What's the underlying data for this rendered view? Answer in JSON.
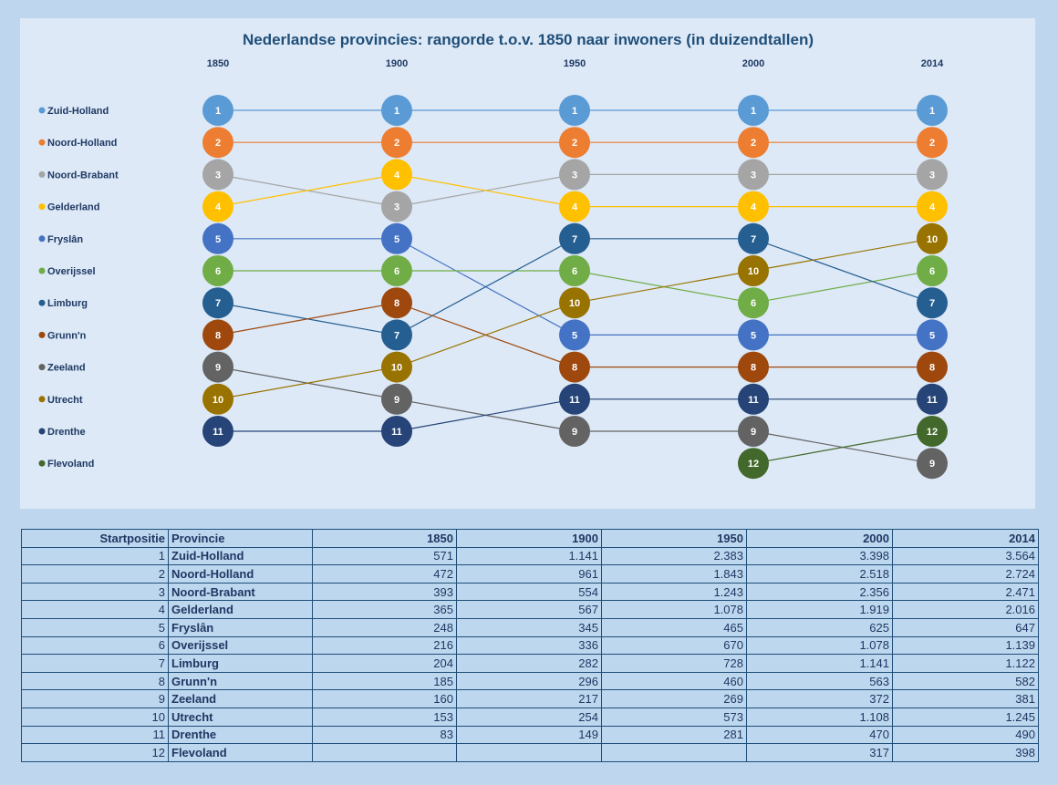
{
  "chart_data": {
    "type": "bump",
    "title": "Nederlandse provincies: rangorde t.o.v. 1850 naar inwoners (in duizendtallen)",
    "years": [
      "1850",
      "1900",
      "1950",
      "2000",
      "2014"
    ],
    "legend_position": "left",
    "series": [
      {
        "name": "Zuid-Holland",
        "label": "1",
        "color": "#5b9bd5",
        "ranks": [
          1,
          1,
          1,
          1,
          1
        ]
      },
      {
        "name": "Noord-Holland",
        "label": "2",
        "color": "#ed7d31",
        "ranks": [
          2,
          2,
          2,
          2,
          2
        ]
      },
      {
        "name": "Noord-Brabant",
        "label": "3",
        "color": "#a5a5a5",
        "ranks": [
          3,
          4,
          3,
          3,
          3
        ]
      },
      {
        "name": "Gelderland",
        "label": "4",
        "color": "#ffc000",
        "ranks": [
          4,
          3,
          4,
          4,
          4
        ]
      },
      {
        "name": "Fryslân",
        "label": "5",
        "color": "#4472c4",
        "ranks": [
          5,
          5,
          8,
          8,
          8
        ]
      },
      {
        "name": "Overijssel",
        "label": "6",
        "color": "#70ad47",
        "ranks": [
          6,
          6,
          6,
          7,
          6
        ]
      },
      {
        "name": "Limburg",
        "label": "7",
        "color": "#255e91",
        "ranks": [
          7,
          8,
          5,
          5,
          7
        ]
      },
      {
        "name": "Grunn'n",
        "label": "8",
        "color": "#9e480e",
        "ranks": [
          8,
          7,
          9,
          9,
          9
        ]
      },
      {
        "name": "Zeeland",
        "label": "9",
        "color": "#636363",
        "ranks": [
          9,
          10,
          11,
          11,
          12
        ]
      },
      {
        "name": "Utrecht",
        "label": "10",
        "color": "#997300",
        "ranks": [
          10,
          9,
          7,
          6,
          5
        ]
      },
      {
        "name": "Drenthe",
        "label": "11",
        "color": "#264478",
        "ranks": [
          11,
          11,
          10,
          10,
          10
        ]
      },
      {
        "name": "Flevoland",
        "label": "12",
        "color": "#43682b",
        "ranks": [
          null,
          null,
          null,
          12,
          11
        ]
      }
    ]
  },
  "table": {
    "headers": [
      "Startpositie",
      "Provincie",
      "1850",
      "1900",
      "1950",
      "2000",
      "2014"
    ],
    "rows": [
      [
        "1",
        "Zuid-Holland",
        "571",
        "1.141",
        "2.383",
        "3.398",
        "3.564"
      ],
      [
        "2",
        "Noord-Holland",
        "472",
        "961",
        "1.843",
        "2.518",
        "2.724"
      ],
      [
        "3",
        "Noord-Brabant",
        "393",
        "554",
        "1.243",
        "2.356",
        "2.471"
      ],
      [
        "4",
        "Gelderland",
        "365",
        "567",
        "1.078",
        "1.919",
        "2.016"
      ],
      [
        "5",
        "Fryslân",
        "248",
        "345",
        "465",
        "625",
        "647"
      ],
      [
        "6",
        "Overijssel",
        "216",
        "336",
        "670",
        "1.078",
        "1.139"
      ],
      [
        "7",
        "Limburg",
        "204",
        "282",
        "728",
        "1.141",
        "1.122"
      ],
      [
        "8",
        "Grunn'n",
        "185",
        "296",
        "460",
        "563",
        "582"
      ],
      [
        "9",
        "Zeeland",
        "160",
        "217",
        "269",
        "372",
        "381"
      ],
      [
        "10",
        "Utrecht",
        "153",
        "254",
        "573",
        "1.108",
        "1.245"
      ],
      [
        "11",
        "Drenthe",
        "83",
        "149",
        "281",
        "470",
        "490"
      ],
      [
        "12",
        "Flevoland",
        "",
        "",
        "",
        "317",
        "398"
      ]
    ]
  }
}
